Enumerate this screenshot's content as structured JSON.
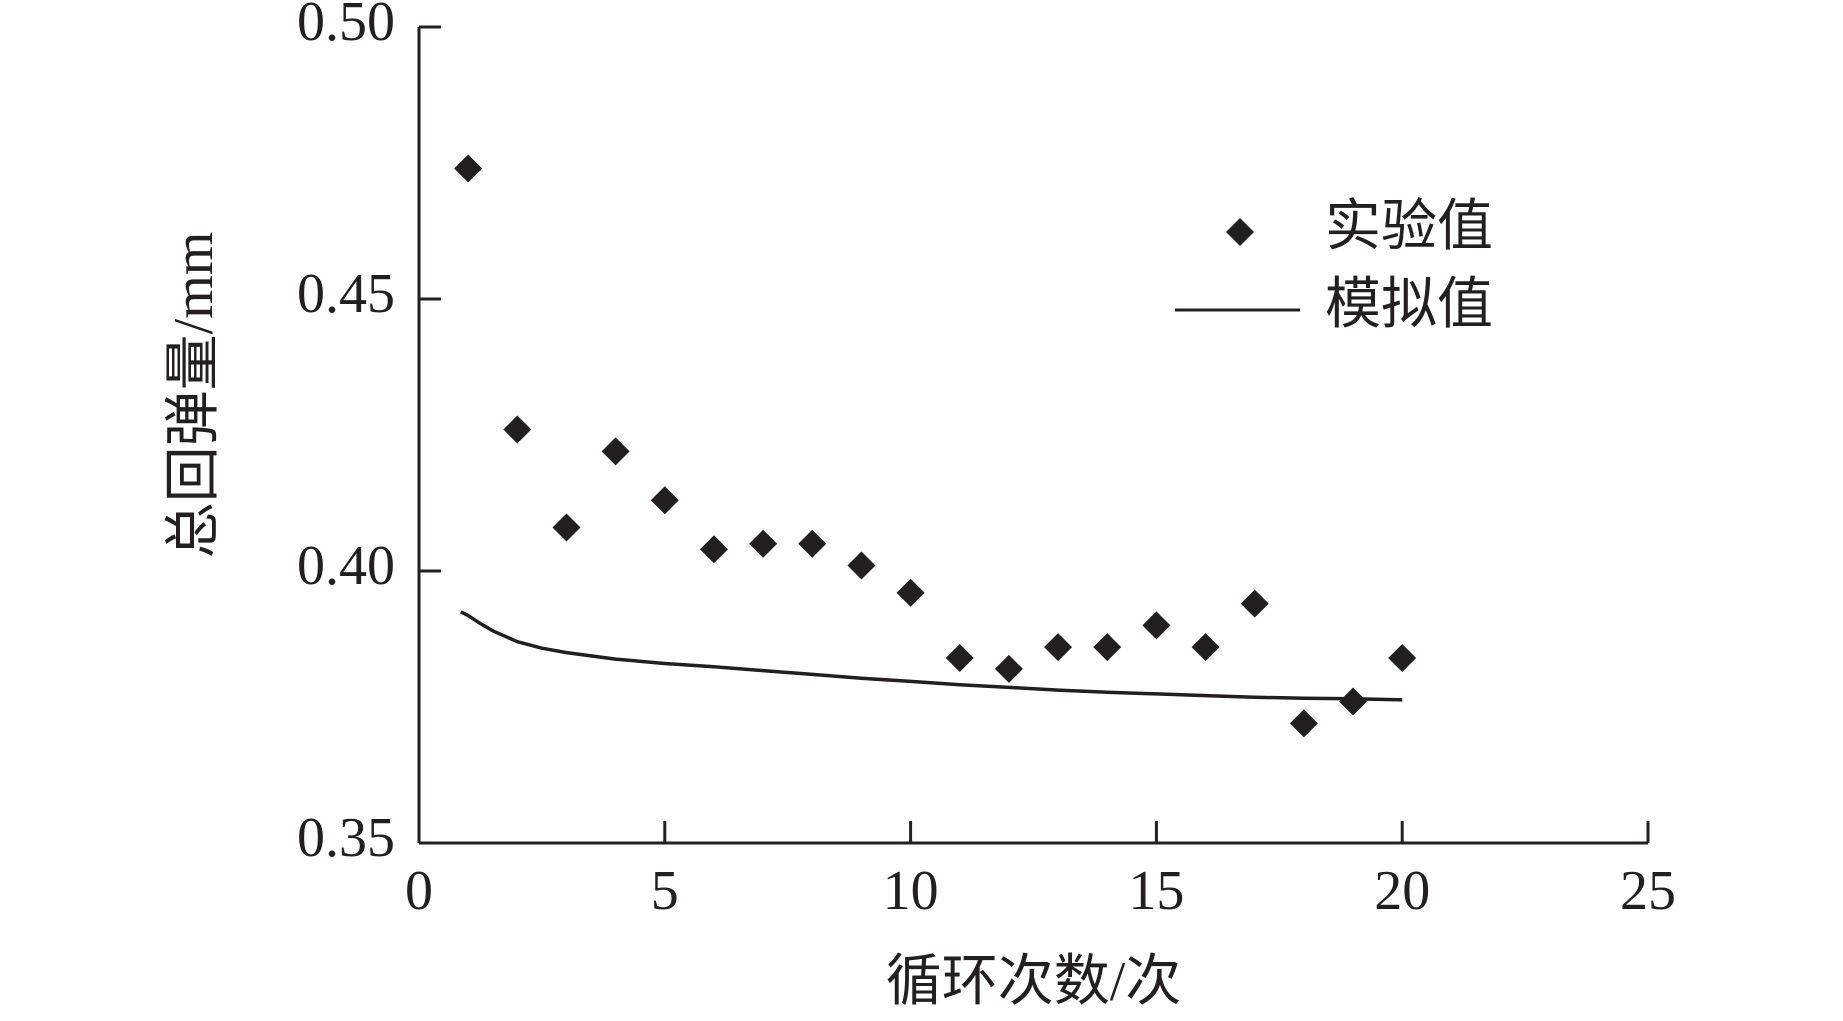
{
  "chart_data": {
    "type": "scatter",
    "xlabel": "循环次数/次",
    "ylabel": "总回弹量/mm",
    "xlim": [
      0,
      25
    ],
    "ylim": [
      0.35,
      0.5
    ],
    "x_ticks": [
      0,
      5,
      10,
      15,
      20,
      25
    ],
    "y_ticks": [
      0.35,
      0.4,
      0.45,
      0.5
    ],
    "x_tick_labels": [
      "0",
      "5",
      "10",
      "15",
      "20",
      "25"
    ],
    "y_tick_labels": [
      "0.35",
      "0.40",
      "0.45",
      "0.50"
    ],
    "grid": false,
    "legend_position": "top-right",
    "series": [
      {
        "name": "实验值",
        "type": "scatter",
        "marker": "diamond",
        "color": "#231f20",
        "x": [
          1,
          2,
          3,
          4,
          5,
          6,
          7,
          8,
          9,
          10,
          11,
          12,
          13,
          14,
          15,
          16,
          17,
          18,
          19,
          20
        ],
        "y": [
          0.474,
          0.426,
          0.408,
          0.422,
          0.413,
          0.404,
          0.405,
          0.405,
          0.401,
          0.396,
          0.384,
          0.382,
          0.386,
          0.386,
          0.39,
          0.386,
          0.394,
          0.372,
          0.376,
          0.384
        ]
      },
      {
        "name": "模拟值",
        "type": "line",
        "color": "#231f20",
        "x": [
          0.85,
          1,
          1.2,
          1.5,
          2,
          2.5,
          3,
          4,
          5,
          6,
          7,
          8,
          9,
          10,
          11,
          12,
          13,
          14,
          15,
          16,
          17,
          18,
          19,
          20
        ],
        "y": [
          0.3925,
          0.3918,
          0.3906,
          0.389,
          0.387,
          0.3858,
          0.385,
          0.3838,
          0.383,
          0.3824,
          0.3817,
          0.381,
          0.3803,
          0.3797,
          0.3791,
          0.3786,
          0.3781,
          0.3777,
          0.3774,
          0.3771,
          0.3768,
          0.3766,
          0.3765,
          0.3763
        ]
      }
    ]
  }
}
